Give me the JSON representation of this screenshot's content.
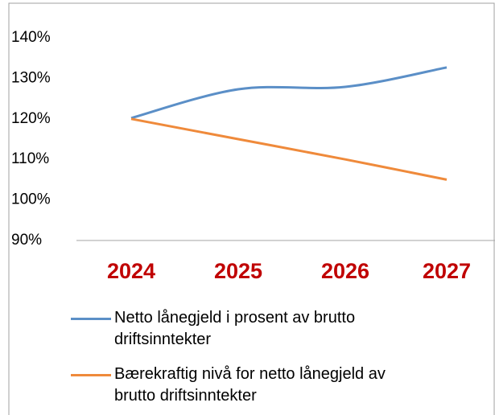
{
  "chart_data": {
    "type": "line",
    "categories": [
      "2024",
      "2025",
      "2026",
      "2027"
    ],
    "series": [
      {
        "name": "Netto lånegjeld i prosent av brutto driftsinntekter",
        "color": "#5b8fc7",
        "values": [
          120.2,
          127.3,
          127.9,
          132.7
        ]
      },
      {
        "name": "Bærekraftig nivå for netto lånegjeld av brutto driftsinntekter",
        "color": "#ef8a3b",
        "values": [
          120.0,
          115.0,
          110.0,
          105.0
        ]
      }
    ],
    "ylim": [
      90,
      140
    ],
    "yticks": [
      {
        "value": 90,
        "label": "90%"
      },
      {
        "value": 100,
        "label": "100%"
      },
      {
        "value": 110,
        "label": "110%"
      },
      {
        "value": 120,
        "label": "120%"
      },
      {
        "value": 130,
        "label": "130%"
      },
      {
        "value": 140,
        "label": "140%"
      }
    ],
    "category_color": "#c00000",
    "smooth": true
  }
}
